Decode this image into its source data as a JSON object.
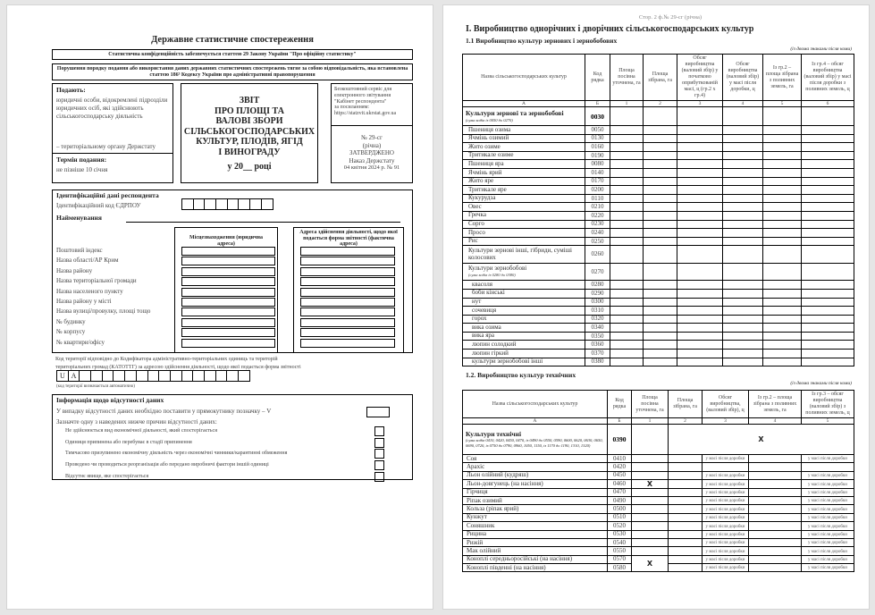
{
  "page1": {
    "title": "Державне статистичне спостереження",
    "confidentiality": "Статистична конфіденційність забезпечується статтею 29 Закону України \"Про офіційну статистику\"",
    "violation": "Порушення порядку подання або використання даних державних статистичних спостережень тягне за собою відповідальність, яка встановлена статтею 186³ Кодексу України про адміністративні правопорушення",
    "submit_title": "Подають:",
    "submit_text": "юридичні особи, відокремлені підрозділи юридичних осіб, які здійснюють сільськогосподарську діяльність",
    "submit_to": "– територіальному органу Держстату",
    "deadline_title": "Термін подання:",
    "deadline_text": "не пізніше 10 січня",
    "report_title": [
      "ЗВІТ",
      "ПРО ПЛОЩІ ТА",
      "ВАЛОВІ ЗБОРИ",
      "СІЛЬСЬКОГОСПОДАРСЬКИХ",
      "КУЛЬТУР, ПЛОДІВ, ЯГІД",
      "І ВИНОГРАДУ"
    ],
    "report_year": "у 20__ році",
    "service_text": [
      "Безкоштовний сервіс для",
      "електронного звітування",
      "\"Кабінет респондента\"",
      "за посиланням:",
      "https://statzvit.ukrstat.gov.ua"
    ],
    "form_info": [
      "№ 29-сг",
      "(річна)",
      "ЗАТВЕРДЖЕНО",
      "Наказ Держстату",
      "04 квітня 2024 р. № 91"
    ],
    "id_title": "Ідентифікаційні дані респондента",
    "edrpou_label": "Ідентифікаційний код ЄДРПОУ",
    "name_label": "Найменування",
    "legal_address_header": "Місцезнаходження (юридична адреса)",
    "actual_address_header": "Адреса здійснення діяльності, щодо якої подається форма звітності (фактична адреса)",
    "address_fields": [
      "Поштовий індекс",
      "Назва області/АР Крим",
      "Назва району",
      "Назва територіальної громади",
      "Назва населеного пункту",
      "Назва району у місті",
      "Назва вулиці/провулку, площі тощо",
      "№ будинку",
      "№ корпусу",
      "№ квартири/офісу"
    ],
    "katottg_text": [
      "Код території відповідно до Кодифікатора адміністративно-територіальних одиниць та територій",
      "територіальних громад (КАТОТТГ) за адресою здійснення діяльності, щодо якої подається форма звітності"
    ],
    "katottg_prefix": [
      "U",
      "A"
    ],
    "katottg_note": "(код території визначається автоматично)",
    "absence_title": "Інформація щодо відсутності даних",
    "absence_instruction": "У випадку відсутності даних необхідно поставити у прямокутнику позначку – V",
    "absence_prompt": "Зазначте одну з наведених нижче причин відсутності даних:",
    "absence_reasons": [
      "Не здійснюється вид економічної діяльності, який спостерігається",
      "Одиниця припинена або перебуває в стадії припинення",
      "Тимчасово призупинено економічну діяльність через економічні чинники/карантинні обмеження",
      "Проведено чи проводиться реорганізація або передано виробничі фактори іншій одиниці",
      "Відсутнє явище, яке спостерігається"
    ]
  },
  "page2": {
    "page_header": "Стор. 2 ф.№ 29-сг (річна)",
    "section_title": "І. Виробництво однорічних і дворічних сільськогосподарських культур",
    "t1": {
      "title": "1.1  Виробництво культур зернових і зернобобових",
      "units_note": "(із двома знаками після коми)",
      "headers": [
        "Назва сільськогосподарських культур",
        "Код рядка",
        "Площа посівна уточнена, га",
        "Площа зібрана, га",
        "Обсяг виробництва (валовий збір) у початково оприбуткованій масі, ц (гр.2 х гр.4)",
        "Обсяг виробництва (валовий збір) у масі після доробки, ц",
        "Із гр.2 – площа зібрана з поливних земель, га",
        "Із гр.4 – обсяг виробництва (валовий збір) у масі після доробки з поливних земель, ц"
      ],
      "col_letters": [
        "А",
        "Б",
        "1",
        "2",
        "3",
        "4",
        "5",
        "6"
      ],
      "total": {
        "name": "Культури зернові та зернобобові",
        "note": "(сума кодів із 0050 до 0270)",
        "code": "0030"
      },
      "rows": [
        {
          "name": "Пшениця озима",
          "code": "0050"
        },
        {
          "name": "Ячмінь озимий",
          "code": "0130"
        },
        {
          "name": "Жито озиме",
          "code": "0160"
        },
        {
          "name": "Тритикале озиме",
          "code": "0190"
        },
        {
          "name": "Пшениця яра",
          "code": "0080"
        },
        {
          "name": "Ячмінь ярий",
          "code": "0140"
        },
        {
          "name": "Жито яре",
          "code": "0170"
        },
        {
          "name": "Тритикале яре",
          "code": "0200"
        },
        {
          "name": "Кукурудза",
          "code": "0110"
        },
        {
          "name": "Овес",
          "code": "0210"
        },
        {
          "name": "Гречка",
          "code": "0220"
        },
        {
          "name": "Сорго",
          "code": "0230"
        },
        {
          "name": "Просо",
          "code": "0240"
        },
        {
          "name": "Рис",
          "code": "0250"
        },
        {
          "name": "Культури зернові інші, гібриди, суміші колосових",
          "code": "0260",
          "tall": true
        },
        {
          "name": "Культури зернобобові",
          "note": "(сума кодів із 0280 до 0380)",
          "code": "0270",
          "tall": true
        },
        {
          "name": "квасоля",
          "code": "0280",
          "sub": true
        },
        {
          "name": "боби кінські",
          "code": "0290",
          "sub": true
        },
        {
          "name": "нут",
          "code": "0300",
          "sub": true
        },
        {
          "name": "сочевиця",
          "code": "0310",
          "sub": true
        },
        {
          "name": "горох",
          "code": "0320",
          "sub": true
        },
        {
          "name": "вика озима",
          "code": "0340",
          "sub": true
        },
        {
          "name": "вика яра",
          "code": "0350",
          "sub": true
        },
        {
          "name": "люпин солодкий",
          "code": "0360",
          "sub": true
        },
        {
          "name": "люпин гіркий",
          "code": "0370",
          "sub": true
        },
        {
          "name": "культури зернобобові інші",
          "code": "0380",
          "sub": true
        }
      ]
    },
    "t2": {
      "title": "1.2. Виробництво культур технічних",
      "units_note": "(із двома знаками після коми)",
      "headers": [
        "Назва сільськогосподарських культур",
        "Код рядка",
        "Площа посівна уточнена, га",
        "Площа зібрана, га",
        "Обсяг виробництва, (валовий збір), ц",
        "Із гр.2 – площа зібрана з поливних земель, га",
        "Із гр.3 – обсяг виробництва (валовий збір) з поливних земель, ц"
      ],
      "col_letters": [
        "А",
        "Б",
        "1",
        "2",
        "3",
        "4",
        "5"
      ],
      "total": {
        "name": "Культури технічні",
        "note": "(сума кодів 0410, 0420, 0450, 0470, із 0490 до 0550, 0590, 0600, 0620, 0630, 0650, 0690, 0720, із 0750 до 0790, 0960, 1050, 1150, із 1170 до 1190, 1310, 1320)",
        "code": "0390",
        "x_mark": "X"
      },
      "cell_note": "у масі після доробки",
      "x_mark": "X",
      "rows": [
        {
          "name": "Соя",
          "code": "0410",
          "note": true
        },
        {
          "name": "Арахіс",
          "code": "0420",
          "note": false
        },
        {
          "name": "Льон олійний (кудряш)",
          "code": "0450",
          "note": true
        },
        {
          "name": "Льон-довгунець (на насіння)",
          "code": "0460",
          "note": true,
          "x": true
        },
        {
          "name": "Гірчиця",
          "code": "0470",
          "note": true
        },
        {
          "name": "Ріпак озимий",
          "code": "0490",
          "note": true
        },
        {
          "name": "Кольза (ріпак ярий)",
          "code": "0500",
          "note": true
        },
        {
          "name": "Кунжут",
          "code": "0510",
          "note": true
        },
        {
          "name": "Соняшник",
          "code": "0520",
          "note": true
        },
        {
          "name": "Рицина",
          "code": "0530",
          "note": true
        },
        {
          "name": "Рижій",
          "code": "0540",
          "note": true
        },
        {
          "name": "Мак олійний",
          "code": "0550",
          "note": true
        },
        {
          "name": "Коноплі середньоросійські (на насіння)",
          "code": "0570",
          "note": true,
          "xspan": 2
        },
        {
          "name": "Коноплі південні (на насіння)",
          "code": "0580",
          "note": true,
          "xskip": true
        }
      ]
    }
  }
}
